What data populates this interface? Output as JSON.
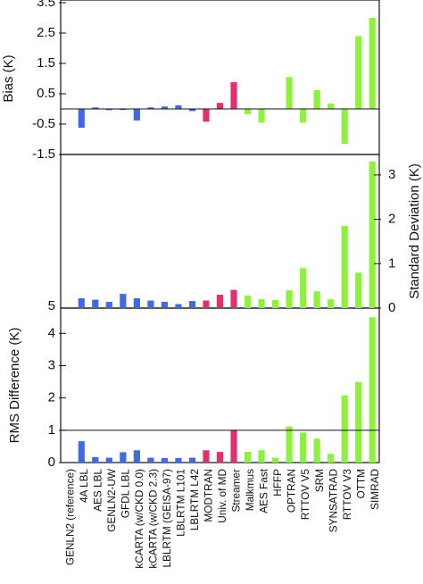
{
  "chart_data": [
    {
      "type": "bar",
      "panel": "bias",
      "ylabel": "Bias (K)",
      "ylim": [
        -1.5,
        3.5
      ],
      "yticks": [
        -1.5,
        -0.5,
        0.5,
        1.5,
        2.5,
        3.5
      ],
      "ytick_labels": [
        "-1.5",
        "-0.5",
        "0.5",
        "1.5",
        "2.5",
        "3.5"
      ],
      "axis_side": "left",
      "grid": false,
      "reference_line": 0,
      "categories": [
        "GENLN2 (reference)",
        "4A LBL",
        "AES LBL",
        "GENLN2-UW",
        "GFDL LBL",
        "kCARTA (w/CKD 0.0)",
        "kCARTA (w/CKD 2.3)",
        "LBLRTM (GEISA-97)",
        "LBLRTM L101",
        "LBLRTM L42",
        "MODTRAN",
        "Univ. of MD",
        "Streamer",
        "Malkmus",
        "AES Fast",
        "HFFP",
        "OPTRAN",
        "RTTOV V5",
        "SRM",
        "SYNSATRAD",
        "RTTOV V3",
        "OTTM",
        "SIMRAD"
      ],
      "values": [
        0,
        -0.62,
        0.05,
        -0.04,
        -0.03,
        -0.38,
        0.05,
        0.08,
        0.12,
        -0.07,
        -0.42,
        0.2,
        0.88,
        -0.18,
        -0.45,
        0.0,
        1.05,
        -0.45,
        0.62,
        0.18,
        -1.15,
        2.4,
        3.0
      ]
    },
    {
      "type": "bar",
      "panel": "standard-deviation",
      "ylabel": "Standard Deviation (K)",
      "ylim": [
        0,
        3.4
      ],
      "yticks": [
        0,
        1,
        2,
        3
      ],
      "ytick_labels": [
        "0",
        "1",
        "2",
        "3"
      ],
      "axis_side": "right",
      "left_tick_label": "5",
      "grid": false,
      "categories": [
        "GENLN2 (reference)",
        "4A LBL",
        "AES LBL",
        "GENLN2-UW",
        "GFDL LBL",
        "kCARTA (w/CKD 0.0)",
        "kCARTA (w/CKD 2.3)",
        "LBLRTM (GEISA-97)",
        "LBLRTM L101",
        "LBLRTM L42",
        "MODTRAN",
        "Univ. of MD",
        "Streamer",
        "Malkmus",
        "AES Fast",
        "HFFP",
        "OPTRAN",
        "RTTOV V5",
        "SRM",
        "SYNSATRAD",
        "RTTOV V3",
        "OTTM",
        "SIMRAD"
      ],
      "values": [
        0,
        0.22,
        0.19,
        0.14,
        0.32,
        0.22,
        0.17,
        0.14,
        0.09,
        0.16,
        0.17,
        0.3,
        0.41,
        0.28,
        0.2,
        0.18,
        0.4,
        0.9,
        0.38,
        0.2,
        1.85,
        0.8,
        3.3
      ]
    },
    {
      "type": "bar",
      "panel": "rms-difference",
      "ylabel": "RMS Difference (K)",
      "ylim": [
        0,
        4.7
      ],
      "yticks": [
        0,
        1,
        2,
        3,
        4
      ],
      "ytick_labels": [
        "0",
        "1",
        "2",
        "3",
        "4"
      ],
      "axis_side": "left",
      "grid": false,
      "reference_line": 1,
      "categories": [
        "GENLN2 (reference)",
        "4A LBL",
        "AES LBL",
        "GENLN2-UW",
        "GFDL LBL",
        "kCARTA (w/CKD 0.0)",
        "kCARTA (w/CKD 2.3)",
        "LBLRTM (GEISA-97)",
        "LBLRTM L101",
        "LBLRTM L42",
        "MODTRAN",
        "Univ. of MD",
        "Streamer",
        "Malkmus",
        "AES Fast",
        "HFFP",
        "OPTRAN",
        "RTTOV V5",
        "SRM",
        "SYNSATRAD",
        "RTTOV V3",
        "OTTM",
        "SIMRAD"
      ],
      "values": [
        0,
        0.66,
        0.17,
        0.15,
        0.32,
        0.38,
        0.15,
        0.14,
        0.14,
        0.15,
        0.38,
        0.33,
        1.0,
        0.33,
        0.38,
        0.15,
        1.12,
        0.93,
        0.74,
        0.27,
        2.08,
        2.5,
        4.5
      ]
    }
  ],
  "colors": {
    "blue": "#4169e1",
    "pink": "#e0306e",
    "green": "#8ef23d",
    "axis": "#111111"
  },
  "bar_groups": [
    "blue",
    "blue",
    "blue",
    "blue",
    "blue",
    "blue",
    "blue",
    "blue",
    "blue",
    "blue",
    "pink",
    "pink",
    "pink",
    "green",
    "green",
    "green",
    "green",
    "green",
    "green",
    "green",
    "green",
    "green",
    "green"
  ]
}
